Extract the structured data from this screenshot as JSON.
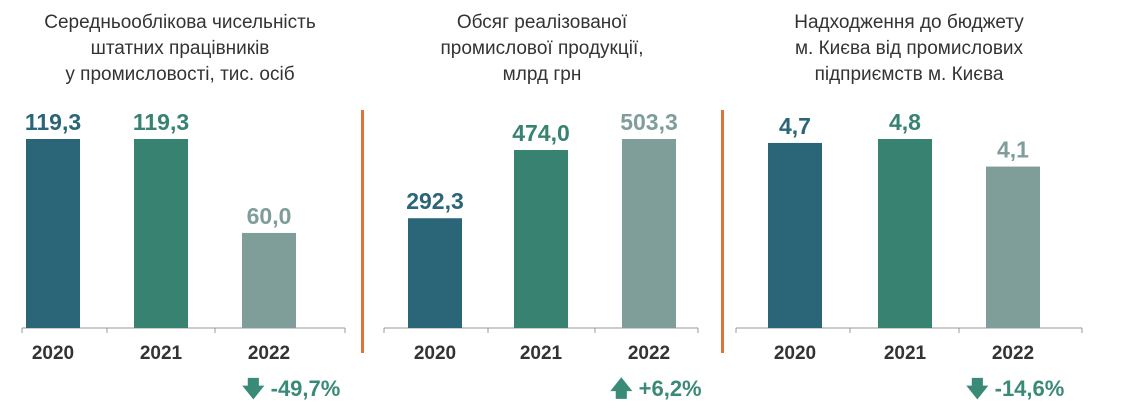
{
  "colors": {
    "bar_2020": "#2b6578",
    "bar_2021": "#388272",
    "bar_2022": "#7f9e9a",
    "label_light": "#7f9e9a",
    "change": "#3a8a78",
    "divider": "#d9753a",
    "axis": "#999999",
    "text": "#333333"
  },
  "chart_data": [
    {
      "type": "bar",
      "title": "Середньооблікова чисельність\nштатних працівників\nу промисловості, тис. осіб",
      "categories": [
        "2020",
        "2021",
        "2022"
      ],
      "values": [
        119.3,
        119.3,
        60.0
      ],
      "value_labels": [
        "119,3",
        "119,3",
        "60,0"
      ],
      "ylim": [
        0,
        119.3
      ],
      "change": {
        "direction": "down",
        "icon": "arrow-down-icon",
        "text": "-49,7%"
      }
    },
    {
      "type": "bar",
      "title": "Обсяг реалізованої\nпромислової продукції,\nмлрд грн",
      "categories": [
        "2020",
        "2021",
        "2022"
      ],
      "values": [
        292.3,
        474.0,
        503.3
      ],
      "value_labels": [
        "292,3",
        "474,0",
        "503,3"
      ],
      "ylim": [
        0,
        503.3
      ],
      "change": {
        "direction": "up",
        "icon": "arrow-up-icon",
        "text": "+6,2%"
      }
    },
    {
      "type": "bar",
      "title": "Надходження до бюджету\nм. Києва від промислових\nпідприємств м. Києва",
      "categories": [
        "2020",
        "2021",
        "2022"
      ],
      "values": [
        4.7,
        4.8,
        4.1
      ],
      "value_labels": [
        "4,7",
        "4,8",
        "4,1"
      ],
      "ylim": [
        0,
        4.8
      ],
      "change": {
        "direction": "down",
        "icon": "arrow-down-icon",
        "text": "-14,6%"
      }
    }
  ]
}
